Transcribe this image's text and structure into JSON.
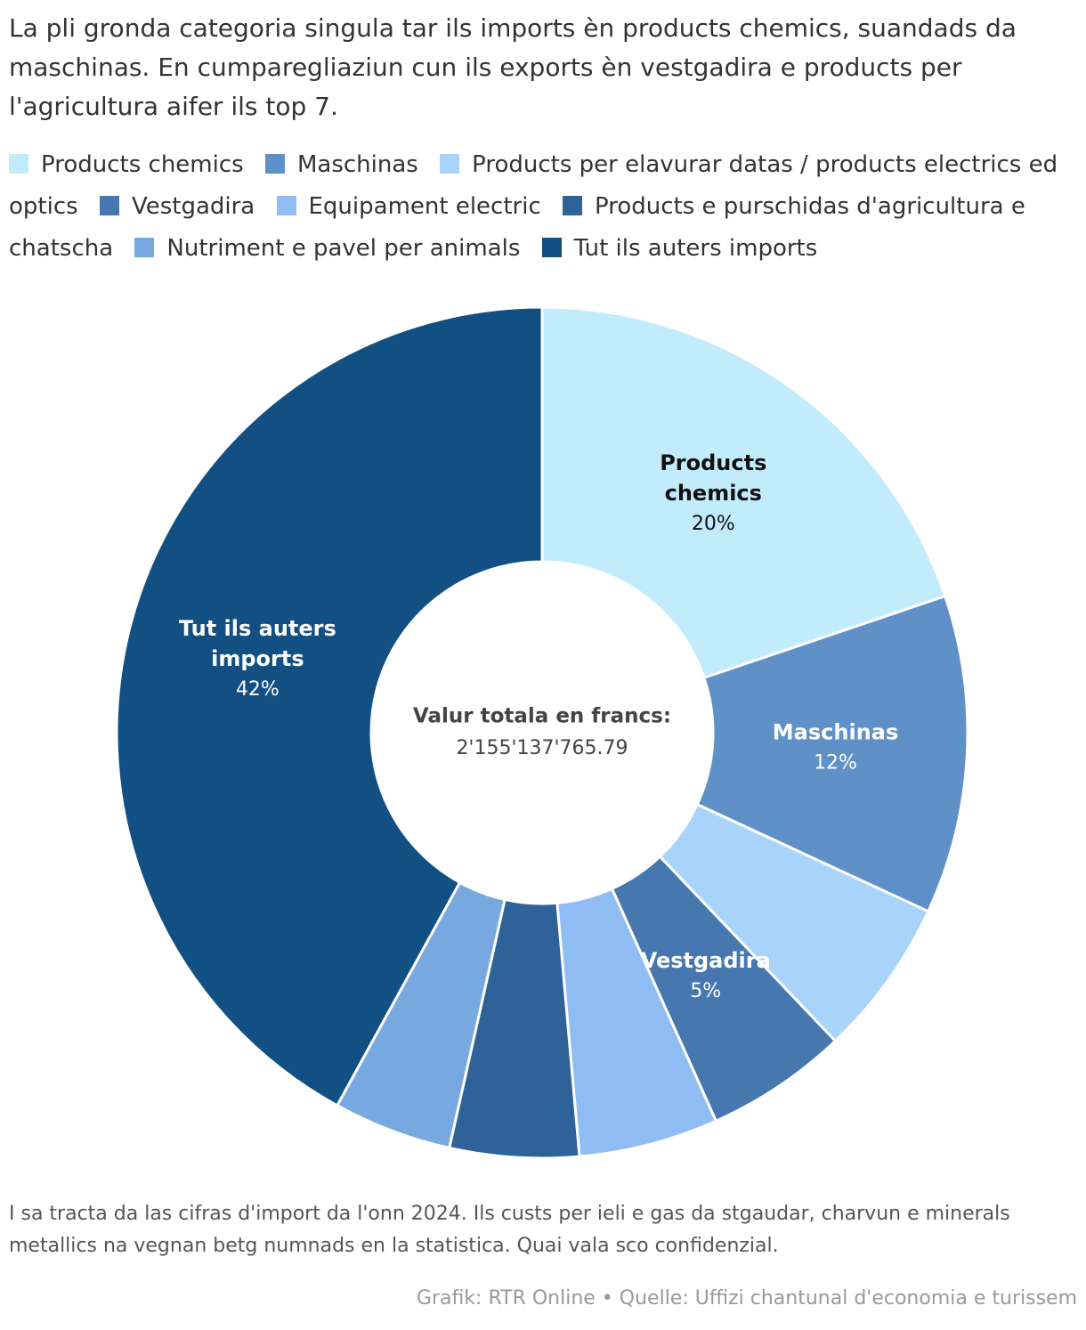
{
  "chart_data": {
    "type": "donut",
    "title": "La pli gronda categoria singula tar ils imports èn products chemics, suandads da maschinas. En cumparegliaziun cun ils exports èn vestgadira e products per l'agricultura aifer ils top 7.",
    "categories": [
      "Products chemics",
      "Maschinas",
      "Products per elavurar datas / products electrics ed optics",
      "Vestgadira",
      "Equipament electric",
      "Products e purschidas d'agricultura e chatscha",
      "Nutriment e pavel per animals",
      "Tut ils auters imports"
    ],
    "values": [
      19.8,
      12.1,
      6.0,
      5.4,
      5.3,
      4.9,
      4.5,
      42.0
    ],
    "value_labels": [
      "20%",
      "12%",
      null,
      "5%",
      null,
      null,
      null,
      "42%"
    ],
    "colors": [
      "#c2ecfc",
      "#6090c8",
      "#a8d4fc",
      "#4677ae",
      "#90bcf4",
      "#2e6298",
      "#78a8e0",
      "#124f82"
    ],
    "center_label": "Valur totala en francs:",
    "center_value": "2'155'137'765.79",
    "note": "I sa tracta da las cifras d'import da l'onn 2024. Ils custs per ieli e gas da stgaudar, charvun e minerals metallics na vegnan betg numnads en la statistica. Quai vala sco confidenzial.",
    "source": "Grafik: RTR Online • Quelle: Uffizi chantunal d'economia e turissem"
  }
}
